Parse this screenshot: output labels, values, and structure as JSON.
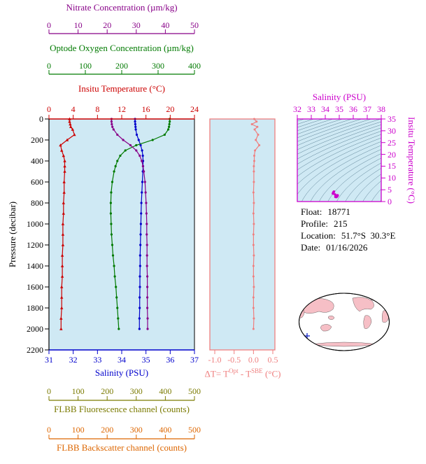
{
  "colors": {
    "plot_bg": "#cfe9f4",
    "contour": "#40687e",
    "magenta": "#cc00cc",
    "map_land": "#f6bfc6",
    "map_marker": "#2233cc"
  },
  "axes": {
    "nitrate": {
      "label": "Nitrate Concentration (µm/kg)",
      "ticks": [
        0,
        10,
        20,
        30,
        40,
        50
      ],
      "color": "#880088"
    },
    "oxygen": {
      "label": "Optode Oxygen Concentration (µm/kg)",
      "ticks": [
        0,
        100,
        200,
        300,
        400
      ],
      "color": "#007a00"
    },
    "temperature": {
      "label": "Insitu Temperature (°C)",
      "ticks": [
        0,
        4,
        8,
        12,
        16,
        20,
        24
      ],
      "color": "#cc0000"
    },
    "pressure": {
      "label": "Pressure (decibar)",
      "ticks": [
        0,
        200,
        400,
        600,
        800,
        1000,
        1200,
        1400,
        1600,
        1800,
        2000,
        2200
      ],
      "color": "#000000"
    },
    "salinity": {
      "label": "Salinity (PSU)",
      "ticks": [
        31,
        32,
        33,
        34,
        35,
        36,
        37
      ],
      "color": "#0000cc"
    },
    "fluorescence": {
      "label": "FLBB Fluorescence channel (counts)",
      "ticks": [
        0,
        100,
        200,
        300,
        400,
        500
      ],
      "color": "#7a7a00"
    },
    "backscatter": {
      "label": "FLBB Backscatter channel (counts)",
      "ticks": [
        0,
        100,
        200,
        300,
        400,
        500
      ],
      "color": "#dd6600"
    }
  },
  "delta_panel": {
    "ticks": [
      "-1.0",
      "-0.5",
      "0.0",
      "0.5"
    ],
    "color": "#ef7f7f",
    "label": {
      "prefix": "ΔT= T",
      "sup1": "Opt",
      "mid": " - T",
      "sup2": "SBE",
      "suffix": " (°C)"
    }
  },
  "ts_panel": {
    "salinity_label": "Salinity (PSU)",
    "salinity_ticks": [
      32,
      33,
      34,
      35,
      36,
      37,
      38
    ],
    "temperature_label": "Insitu Temperature (°C)",
    "temperature_ticks": [
      0,
      5,
      10,
      15,
      20,
      25,
      30,
      35
    ],
    "color": "#cc00cc"
  },
  "info": {
    "float_label": "Float:",
    "float_value": "18771",
    "profile_label": "Profile:",
    "profile_value": "215",
    "location_label": "Location:",
    "location_value": "51.7°S  30.3°E",
    "date_label": "Date:",
    "date_value": "01/16/2026"
  },
  "chart_data": [
    {
      "type": "line",
      "title": "Float vertical profiles",
      "ylabel": "Pressure (decibar)",
      "ylim": [
        0,
        2200
      ],
      "y_inverted": true,
      "pressure": [
        0,
        25,
        50,
        75,
        100,
        150,
        200,
        250,
        300,
        350,
        400,
        450,
        500,
        600,
        700,
        800,
        900,
        1000,
        1100,
        1200,
        1300,
        1400,
        1500,
        1600,
        1700,
        1800,
        1900,
        2000
      ],
      "series": [
        {
          "key": "temperature",
          "name": "Insitu Temperature (°C)",
          "color": "#cc0000",
          "axis_range": [
            0,
            24
          ],
          "marker": "triangle",
          "values": [
            3.4,
            3.4,
            3.5,
            3.6,
            3.9,
            4.2,
            3.0,
            1.9,
            2.1,
            2.4,
            2.6,
            2.6,
            2.6,
            2.5,
            2.5,
            2.4,
            2.4,
            2.3,
            2.3,
            2.3,
            2.2,
            2.2,
            2.2,
            2.1,
            2.1,
            2.1,
            2.0,
            2.0
          ]
        },
        {
          "key": "salinity",
          "name": "Salinity (PSU)",
          "color": "#0000cc",
          "axis_range": [
            31,
            37
          ],
          "marker": "circle",
          "values": [
            34.55,
            34.55,
            34.56,
            34.57,
            34.58,
            34.62,
            34.7,
            34.78,
            34.84,
            34.87,
            34.88,
            34.88,
            34.87,
            34.85,
            34.83,
            34.81,
            34.8,
            34.79,
            34.78,
            34.77,
            34.76,
            34.76,
            34.75,
            34.75,
            34.74,
            34.74,
            34.73,
            34.73
          ]
        },
        {
          "key": "oxygen",
          "name": "Optode Oxygen Concentration (µm/kg)",
          "color": "#007a00",
          "axis_range": [
            0,
            400
          ],
          "marker": "circle",
          "values": [
            332,
            332,
            331,
            330,
            328,
            318,
            285,
            240,
            210,
            196,
            188,
            183,
            179,
            174,
            171,
            170,
            170,
            171,
            172,
            174,
            176,
            179,
            181,
            184,
            186,
            188,
            190,
            192
          ]
        },
        {
          "key": "nitrate",
          "name": "Nitrate Concentration (µm/kg)",
          "color": "#880088",
          "axis_range": [
            0,
            50
          ],
          "marker": "circle",
          "values": [
            21.5,
            21.5,
            21.6,
            21.8,
            22.2,
            23.5,
            25.5,
            28,
            30,
            31.2,
            31.9,
            32.3,
            32.6,
            33,
            33.2,
            33.4,
            33.5,
            33.6,
            33.6,
            33.7,
            33.7,
            33.7,
            33.8,
            33.8,
            33.8,
            33.8,
            33.9,
            33.9
          ]
        }
      ]
    },
    {
      "type": "line",
      "title": "Oxygen minus SBE temperature difference",
      "xlabel": "ΔT= TOpt - TSBE (°C)",
      "xlim": [
        -1.0,
        0.5
      ],
      "color": "#ef7f7f",
      "pressure": [
        0,
        25,
        50,
        75,
        100,
        150,
        200,
        250,
        300,
        350,
        400,
        450,
        500,
        600,
        700,
        800,
        900,
        1000,
        1100,
        1200,
        1300,
        1400,
        1500,
        1600,
        1700,
        1800,
        1900,
        2000
      ],
      "values": [
        0.02,
        0.08,
        -0.04,
        0.1,
        0.03,
        0.12,
        0.06,
        0.15,
        0.04,
        0.02,
        0.02,
        0.01,
        0.01,
        0.01,
        0,
        0.01,
        0,
        0.01,
        0,
        0,
        0.01,
        0,
        0,
        0.01,
        0,
        0,
        0.01,
        0
      ]
    },
    {
      "type": "scatter",
      "title": "T-S diagram",
      "xlabel": "Salinity (PSU)",
      "xlim": [
        32,
        38
      ],
      "ylabel": "Insitu Temperature (°C)",
      "ylim": [
        0,
        35
      ],
      "background": "sigma-theta density contours",
      "points": [
        [
          34.55,
          3.4
        ],
        [
          34.55,
          3.4
        ],
        [
          34.56,
          3.5
        ],
        [
          34.57,
          3.6
        ],
        [
          34.58,
          3.9
        ],
        [
          34.62,
          4.2
        ],
        [
          34.7,
          3.0
        ],
        [
          34.78,
          1.9
        ],
        [
          34.84,
          2.1
        ],
        [
          34.87,
          2.4
        ],
        [
          34.88,
          2.6
        ],
        [
          34.88,
          2.6
        ],
        [
          34.87,
          2.6
        ],
        [
          34.85,
          2.5
        ],
        [
          34.83,
          2.5
        ],
        [
          34.81,
          2.4
        ],
        [
          34.8,
          2.4
        ],
        [
          34.79,
          2.3
        ],
        [
          34.78,
          2.3
        ],
        [
          34.77,
          2.3
        ],
        [
          34.76,
          2.2
        ],
        [
          34.76,
          2.2
        ],
        [
          34.75,
          2.2
        ],
        [
          34.75,
          2.1
        ],
        [
          34.74,
          2.1
        ],
        [
          34.74,
          2.1
        ],
        [
          34.73,
          2.0
        ],
        [
          34.73,
          2.0
        ]
      ]
    }
  ]
}
